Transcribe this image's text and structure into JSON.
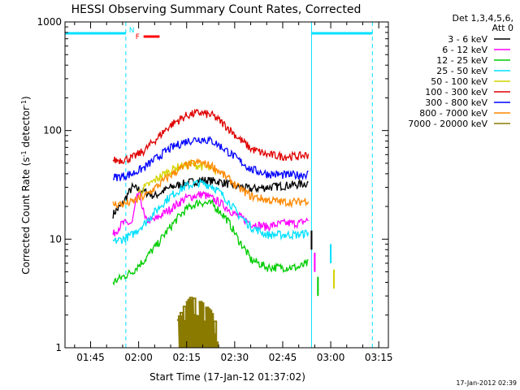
{
  "chart_data": {
    "type": "line",
    "title": "HESSI Observing Summary Count Rates, Corrected",
    "xlabel": "Start Time (17-Jan-12 01:37:02)",
    "ylabel_parts": {
      "before": "Corrected Count Rate (s",
      "sup1": "-1",
      "middle": " detector",
      "sup2": "-1",
      "after": ")"
    },
    "y_scale": "log",
    "ylim": [
      1,
      1000
    ],
    "xlim": [
      "01:37",
      "03:18"
    ],
    "x_ticks": [
      "01:45",
      "02:00",
      "02:15",
      "02:30",
      "02:45",
      "03:00",
      "03:15"
    ],
    "y_ticks": [
      "1",
      "10",
      "100",
      "1000"
    ],
    "legend_header": [
      "Det 1,3,4,5,6,",
      "Att 0"
    ],
    "legend_position": "right, outside plot",
    "timestamp": "17-Jan-2012 02:39",
    "flags": [
      {
        "label": "N",
        "color": "#00e0ff",
        "start": "01:57",
        "end": "01:58"
      },
      {
        "label": "F",
        "color": "#ff0000",
        "start": "01:59",
        "end": "02:04"
      }
    ],
    "night_bars": [
      {
        "start": "01:37",
        "end": "01:56",
        "color": "#00e0ff"
      },
      {
        "start": "02:54",
        "end": "03:13",
        "color": "#00e0ff"
      }
    ],
    "series": [
      {
        "name": "3 - 6 keV",
        "color": "#000000",
        "points": [
          [
            "01:52",
            17
          ],
          [
            "01:55",
            21
          ],
          [
            "01:58",
            30
          ],
          [
            "02:01",
            28
          ],
          [
            "02:05",
            25
          ],
          [
            "02:10",
            30
          ],
          [
            "02:15",
            33
          ],
          [
            "02:20",
            35
          ],
          [
            "02:25",
            34
          ],
          [
            "02:30",
            31
          ],
          [
            "02:35",
            29
          ],
          [
            "02:40",
            30
          ],
          [
            "02:45",
            31
          ],
          [
            "02:50",
            32
          ],
          [
            "02:53",
            33
          ]
        ]
      },
      {
        "name": "6 - 12 keV",
        "color": "#ff00ff",
        "points": [
          [
            "01:52",
            11
          ],
          [
            "01:55",
            14
          ],
          [
            "01:58",
            14
          ],
          [
            "02:00",
            27
          ],
          [
            "02:02",
            15
          ],
          [
            "02:05",
            15
          ],
          [
            "02:10",
            19
          ],
          [
            "02:15",
            24
          ],
          [
            "02:20",
            26
          ],
          [
            "02:25",
            22
          ],
          [
            "02:30",
            17
          ],
          [
            "02:35",
            14
          ],
          [
            "02:40",
            13
          ],
          [
            "02:45",
            14
          ],
          [
            "02:50",
            14
          ],
          [
            "02:53",
            15
          ]
        ]
      },
      {
        "name": "12 - 25 keV",
        "color": "#00cc00",
        "points": [
          [
            "01:52",
            4
          ],
          [
            "01:55",
            4.5
          ],
          [
            "01:58",
            5
          ],
          [
            "02:02",
            6.5
          ],
          [
            "02:06",
            9
          ],
          [
            "02:10",
            13
          ],
          [
            "02:15",
            19
          ],
          [
            "02:19",
            22
          ],
          [
            "02:23",
            21
          ],
          [
            "02:27",
            16
          ],
          [
            "02:31",
            10
          ],
          [
            "02:35",
            6.5
          ],
          [
            "02:40",
            5.5
          ],
          [
            "02:45",
            5.5
          ],
          [
            "02:50",
            5.5
          ],
          [
            "02:53",
            6
          ]
        ]
      },
      {
        "name": "25 - 50 keV",
        "color": "#00e0ff",
        "points": [
          [
            "01:52",
            9.5
          ],
          [
            "01:55",
            10
          ],
          [
            "01:58",
            11
          ],
          [
            "02:02",
            14
          ],
          [
            "02:06",
            19
          ],
          [
            "02:10",
            25
          ],
          [
            "02:15",
            31
          ],
          [
            "02:19",
            33
          ],
          [
            "02:23",
            31
          ],
          [
            "02:27",
            24
          ],
          [
            "02:31",
            17
          ],
          [
            "02:35",
            13
          ],
          [
            "02:40",
            11
          ],
          [
            "02:45",
            11
          ],
          [
            "02:50",
            11
          ],
          [
            "02:53",
            11.5
          ]
        ]
      },
      {
        "name": "50 - 100 keV",
        "color": "#d4d400",
        "points": [
          [
            "02:00",
            27
          ],
          [
            "02:04",
            33
          ],
          [
            "02:08",
            40
          ],
          [
            "02:12",
            46
          ],
          [
            "02:16",
            49
          ],
          [
            "02:20",
            47
          ],
          [
            "02:24",
            42
          ]
        ]
      },
      {
        "name": "100 - 300 keV",
        "color": "#e00000",
        "points": [
          [
            "01:52",
            53
          ],
          [
            "01:55",
            54
          ],
          [
            "01:58",
            56
          ],
          [
            "02:02",
            66
          ],
          [
            "02:06",
            86
          ],
          [
            "02:10",
            112
          ],
          [
            "02:15",
            138
          ],
          [
            "02:19",
            146
          ],
          [
            "02:23",
            138
          ],
          [
            "02:27",
            112
          ],
          [
            "02:31",
            86
          ],
          [
            "02:35",
            68
          ],
          [
            "02:40",
            60
          ],
          [
            "02:45",
            58
          ],
          [
            "02:50",
            58
          ],
          [
            "02:53",
            60
          ]
        ]
      },
      {
        "name": "300 - 800 keV",
        "color": "#0000ff",
        "points": [
          [
            "01:52",
            37
          ],
          [
            "01:55",
            38
          ],
          [
            "01:58",
            40
          ],
          [
            "02:02",
            46
          ],
          [
            "02:06",
            57
          ],
          [
            "02:10",
            69
          ],
          [
            "02:15",
            80
          ],
          [
            "02:19",
            84
          ],
          [
            "02:23",
            80
          ],
          [
            "02:27",
            67
          ],
          [
            "02:31",
            54
          ],
          [
            "02:35",
            44
          ],
          [
            "02:40",
            40
          ],
          [
            "02:45",
            39
          ],
          [
            "02:50",
            39
          ],
          [
            "02:53",
            40
          ]
        ]
      },
      {
        "name": "800 - 7000 keV",
        "color": "#ff8800",
        "points": [
          [
            "01:52",
            21
          ],
          [
            "01:55",
            21
          ],
          [
            "01:58",
            22
          ],
          [
            "02:02",
            25
          ],
          [
            "02:06",
            31
          ],
          [
            "02:10",
            39
          ],
          [
            "02:15",
            48
          ],
          [
            "02:19",
            51
          ],
          [
            "02:23",
            47
          ],
          [
            "02:27",
            38
          ],
          [
            "02:31",
            30
          ],
          [
            "02:35",
            25
          ],
          [
            "02:40",
            23
          ],
          [
            "02:45",
            22
          ],
          [
            "02:50",
            22
          ],
          [
            "02:53",
            23
          ]
        ]
      },
      {
        "name": "7000 - 20000 keV",
        "color": "#8a7a00",
        "points": [
          [
            "02:12",
            1.8
          ],
          [
            "02:14",
            2.4
          ],
          [
            "02:16",
            2.9
          ],
          [
            "02:18",
            2.8
          ],
          [
            "02:20",
            2.5
          ],
          [
            "02:22",
            2.2
          ],
          [
            "02:24",
            1.6
          ]
        ]
      }
    ]
  }
}
